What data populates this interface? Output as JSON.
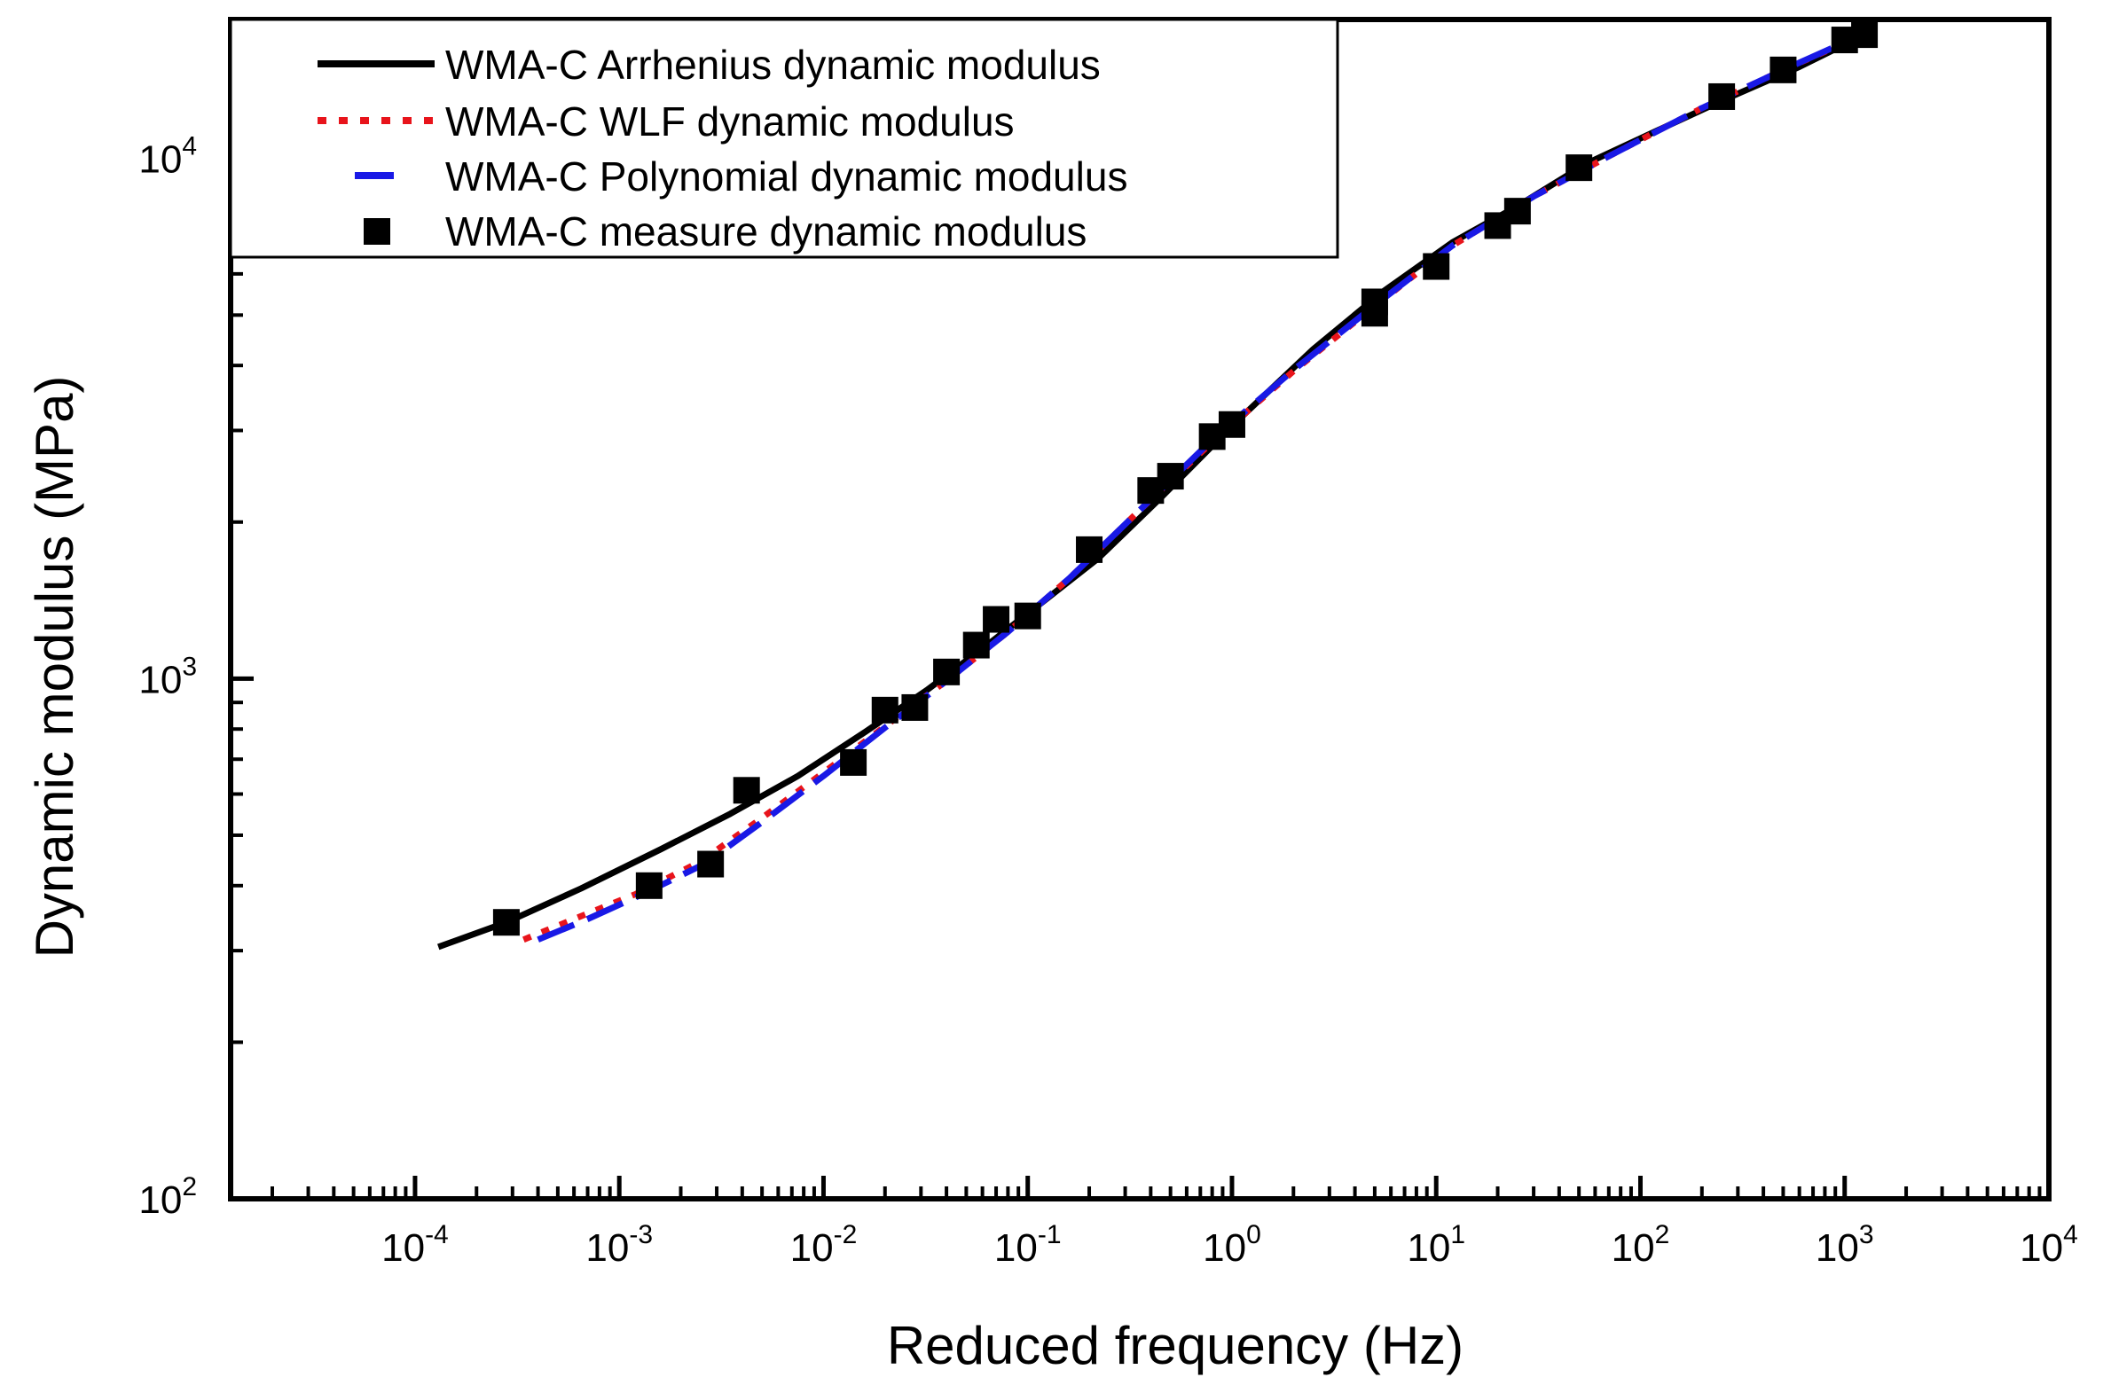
{
  "chart_data": {
    "type": "line",
    "title": "",
    "xlabel": "Reduced frequency (Hz)",
    "ylabel": "Dynamic modulus (MPa)",
    "xscale": "log",
    "yscale": "log",
    "xlim": [
      1.25e-05,
      10000
    ],
    "ylim": [
      100,
      18500
    ],
    "x_ticks": [
      {
        "base": "10",
        "exp": "-4",
        "value": 0.0001
      },
      {
        "base": "10",
        "exp": "-3",
        "value": 0.001
      },
      {
        "base": "10",
        "exp": "-2",
        "value": 0.01
      },
      {
        "base": "10",
        "exp": "-1",
        "value": 0.1
      },
      {
        "base": "10",
        "exp": "0",
        "value": 1
      },
      {
        "base": "10",
        "exp": "1",
        "value": 10
      },
      {
        "base": "10",
        "exp": "2",
        "value": 100
      },
      {
        "base": "10",
        "exp": "3",
        "value": 1000
      },
      {
        "base": "10",
        "exp": "4",
        "value": 10000
      }
    ],
    "y_ticks": [
      {
        "base": "10",
        "exp": "2",
        "value": 100
      },
      {
        "base": "10",
        "exp": "3",
        "value": 1000
      },
      {
        "base": "10",
        "exp": "4",
        "value": 10000
      }
    ],
    "legend_position": "top-left",
    "series": [
      {
        "name": "WMA-C Arrhenius dynamic modulus",
        "style": "solid",
        "color": "#000000",
        "x": [
          0.00013,
          0.00028,
          0.00065,
          0.0016,
          0.0035,
          0.0075,
          0.016,
          0.032,
          0.065,
          0.12,
          0.22,
          0.45,
          1.0,
          2.5,
          5.5,
          12,
          25,
          55,
          120,
          260,
          600,
          1250
        ],
        "y": [
          305,
          340,
          395,
          470,
          550,
          650,
          790,
          950,
          1170,
          1410,
          1700,
          2230,
          3060,
          4300,
          5550,
          6900,
          8100,
          9800,
          11300,
          13000,
          15000,
          17300
        ]
      },
      {
        "name": "WMA-C WLF dynamic modulus",
        "style": "dotted",
        "color": "#e8141b",
        "x": [
          0.00034,
          0.0006,
          0.0012,
          0.0025,
          0.005,
          0.01,
          0.02,
          0.04,
          0.08,
          0.16,
          0.35,
          0.8,
          2,
          5,
          12,
          30,
          70,
          200,
          500,
          1200
        ],
        "y": [
          315,
          345,
          385,
          445,
          540,
          660,
          810,
          990,
          1230,
          1560,
          2100,
          2850,
          3900,
          5200,
          6800,
          8450,
          10100,
          12500,
          14800,
          17200
        ]
      },
      {
        "name": "WMA-C Polynomial dynamic modulus",
        "style": "dashed",
        "color": "#1919e6",
        "x": [
          0.0004,
          0.0007,
          0.0013,
          0.0026,
          0.005,
          0.01,
          0.02,
          0.04,
          0.08,
          0.16,
          0.35,
          0.8,
          2,
          5,
          12,
          30,
          70,
          200,
          500,
          1100
        ],
        "y": [
          315,
          345,
          385,
          440,
          530,
          650,
          805,
          990,
          1230,
          1560,
          2100,
          2880,
          3920,
          5220,
          6800,
          8450,
          10100,
          12500,
          14800,
          17000
        ]
      },
      {
        "name": "WMA-C measure dynamic modulus",
        "style": "markers",
        "marker": "square",
        "color": "#000000",
        "x": [
          0.00028,
          0.0014,
          0.0028,
          0.0042,
          0.014,
          0.02,
          0.028,
          0.04,
          0.056,
          0.07,
          0.1,
          0.2,
          0.4,
          0.5,
          0.8,
          1.0,
          5,
          5,
          10,
          20,
          25,
          50,
          250,
          500,
          1000,
          1250
        ],
        "y": [
          340,
          400,
          440,
          610,
          690,
          870,
          880,
          1030,
          1160,
          1300,
          1320,
          1770,
          2300,
          2450,
          2920,
          3080,
          5040,
          5300,
          6200,
          7430,
          7920,
          9600,
          13150,
          14800,
          16900,
          17300
        ]
      }
    ]
  }
}
